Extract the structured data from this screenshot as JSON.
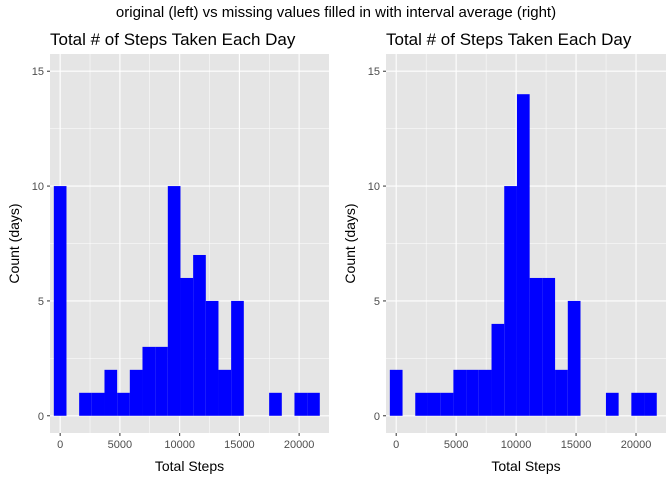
{
  "suptitle": "original (left) vs missing values filled in with interval average (right)",
  "colors": {
    "panel_background": "#e5e5e5",
    "gridline": "#ffffff",
    "bar_fill": "#0000ff",
    "tick_text": "#4d4d4d"
  },
  "chart_data": [
    {
      "type": "bar",
      "title": "Total # of Steps Taken Each Day",
      "xlabel": "Total Steps",
      "ylabel": "Count (days)",
      "xlim": [
        -850,
        22500
      ],
      "ylim": [
        -0.75,
        15.75
      ],
      "x_ticks": [
        0,
        5000,
        10000,
        15000,
        20000
      ],
      "x_tick_labels": [
        "0",
        "5000",
        "10000",
        "15000",
        "20000"
      ],
      "y_ticks": [
        0,
        5,
        10,
        15
      ],
      "y_tick_labels": [
        "0",
        "5",
        "10",
        "15"
      ],
      "bin_width": 1060,
      "bins": [
        {
          "x": 0,
          "count": 10
        },
        {
          "x": 1060,
          "count": 0
        },
        {
          "x": 2120,
          "count": 1
        },
        {
          "x": 3180,
          "count": 1
        },
        {
          "x": 4240,
          "count": 2
        },
        {
          "x": 5300,
          "count": 1
        },
        {
          "x": 6360,
          "count": 2
        },
        {
          "x": 7420,
          "count": 3
        },
        {
          "x": 8480,
          "count": 3
        },
        {
          "x": 9540,
          "count": 10
        },
        {
          "x": 10600,
          "count": 6
        },
        {
          "x": 11660,
          "count": 7
        },
        {
          "x": 12720,
          "count": 5
        },
        {
          "x": 13780,
          "count": 2
        },
        {
          "x": 14840,
          "count": 5
        },
        {
          "x": 15900,
          "count": 0
        },
        {
          "x": 16960,
          "count": 0
        },
        {
          "x": 18020,
          "count": 1
        },
        {
          "x": 19080,
          "count": 0
        },
        {
          "x": 20140,
          "count": 1
        },
        {
          "x": 21200,
          "count": 1
        }
      ]
    },
    {
      "type": "bar",
      "title": "Total # of Steps Taken Each Day",
      "xlabel": "Total Steps",
      "ylabel": "Count (days)",
      "xlim": [
        -850,
        22500
      ],
      "ylim": [
        -0.75,
        15.75
      ],
      "x_ticks": [
        0,
        5000,
        10000,
        15000,
        20000
      ],
      "x_tick_labels": [
        "0",
        "5000",
        "10000",
        "15000",
        "20000"
      ],
      "y_ticks": [
        0,
        5,
        10,
        15
      ],
      "y_tick_labels": [
        "0",
        "5",
        "10",
        "15"
      ],
      "bin_width": 1060,
      "bins": [
        {
          "x": 0,
          "count": 2
        },
        {
          "x": 1060,
          "count": 0
        },
        {
          "x": 2120,
          "count": 1
        },
        {
          "x": 3180,
          "count": 1
        },
        {
          "x": 4240,
          "count": 1
        },
        {
          "x": 5300,
          "count": 2
        },
        {
          "x": 6360,
          "count": 2
        },
        {
          "x": 7420,
          "count": 2
        },
        {
          "x": 8480,
          "count": 4
        },
        {
          "x": 9540,
          "count": 10
        },
        {
          "x": 10600,
          "count": 14
        },
        {
          "x": 11660,
          "count": 6
        },
        {
          "x": 12720,
          "count": 6
        },
        {
          "x": 13780,
          "count": 2
        },
        {
          "x": 14840,
          "count": 5
        },
        {
          "x": 15900,
          "count": 0
        },
        {
          "x": 16960,
          "count": 0
        },
        {
          "x": 18020,
          "count": 1
        },
        {
          "x": 19080,
          "count": 0
        },
        {
          "x": 20140,
          "count": 1
        },
        {
          "x": 21200,
          "count": 1
        }
      ]
    }
  ]
}
